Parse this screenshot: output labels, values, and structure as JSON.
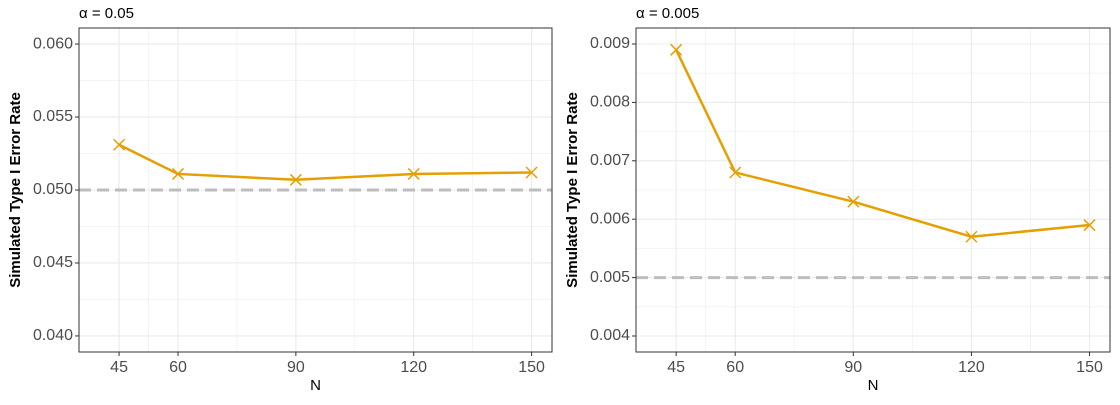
{
  "chart_data": [
    {
      "type": "line",
      "title": "α = 0.05",
      "x_label": "N",
      "y_label": "Simulated Type I Error Rate",
      "x": [
        45,
        60,
        90,
        120,
        150
      ],
      "series": [
        {
          "name": "Simulated",
          "color": "#E69F00",
          "values": [
            0.0531,
            0.0511,
            0.0507,
            0.0511,
            0.0512
          ]
        }
      ],
      "hline": 0.05,
      "hline_color": "#bdbdbd",
      "xlim": [
        34.8,
        155.2
      ],
      "xticks": [
        45,
        60,
        90,
        120,
        150
      ],
      "ylim": [
        0.0389,
        0.0611
      ],
      "yticks": [
        {
          "value": 0.04,
          "label": "0.040"
        },
        0.045,
        {
          "value": 0.05,
          "label": "0.050"
        },
        0.055,
        {
          "value": 0.06,
          "label": "0.060"
        }
      ],
      "grid": true
    },
    {
      "type": "line",
      "title": "α = 0.005",
      "x_label": "N",
      "y_label": "Simulated Type I Error Rate",
      "x": [
        45,
        60,
        90,
        120,
        150
      ],
      "series": [
        {
          "name": "Simulated",
          "color": "#E69F00",
          "values": [
            0.0089,
            0.0068,
            0.0063,
            0.0057,
            0.0059
          ]
        }
      ],
      "hline": 0.005,
      "hline_color": "#bdbdbd",
      "xlim": [
        34.8,
        155.2
      ],
      "xticks": [
        45,
        60,
        90,
        120,
        150
      ],
      "ylim": [
        0.003726,
        0.009274
      ],
      "yticks": [
        0.004,
        0.005,
        0.006,
        0.007,
        0.008,
        0.009
      ],
      "grid": true
    }
  ]
}
